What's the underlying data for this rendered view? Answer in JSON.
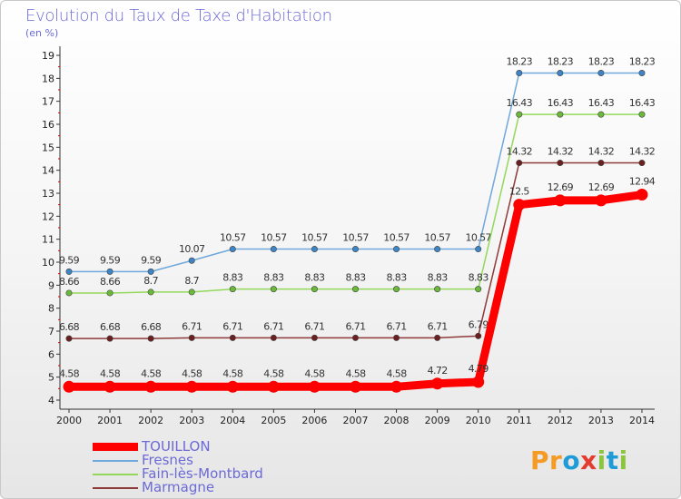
{
  "title": "Evolution du Taux de Taxe d'Habitation",
  "unit": "(en %)",
  "logo": {
    "text": "Proxiti",
    "letters": [
      {
        "ch": "P",
        "color": "#f59a23"
      },
      {
        "ch": "r",
        "color": "#f59a23"
      },
      {
        "ch": "o",
        "color": "#1f9bd7"
      },
      {
        "ch": "x",
        "color": "#e43c2f"
      },
      {
        "ch": "i",
        "color": "#8cc63f"
      },
      {
        "ch": "t",
        "color": "#1f9bd7"
      },
      {
        "ch": "i",
        "color": "#8cc63f"
      }
    ]
  },
  "chart_data": {
    "type": "line",
    "title": "Evolution du Taux de Taxe d'Habitation",
    "ylabel": "(en %)",
    "xlabel": "",
    "ylim": [
      4,
      19
    ],
    "yticks": [
      "4",
      "5",
      "6",
      "7",
      "8",
      "9",
      "10",
      "11",
      "12",
      "13",
      "14",
      "15",
      "16",
      "17",
      "18",
      "19"
    ],
    "grid": false,
    "legend": "bottom-left",
    "categories": [
      "2000",
      "2001",
      "2002",
      "2003",
      "2004",
      "2005",
      "2006",
      "2007",
      "2008",
      "2009",
      "2010",
      "2011",
      "2012",
      "2013",
      "2014"
    ],
    "series": [
      {
        "name": "Fresnes",
        "color": "#6fa8dc",
        "dot": "#3d85c6",
        "values": [
          9.59,
          9.59,
          9.59,
          10.07,
          10.57,
          10.57,
          10.57,
          10.57,
          10.57,
          10.57,
          10.57,
          18.23,
          18.23,
          18.23,
          18.23
        ],
        "labels": [
          "9.59",
          "9.59",
          "9.59",
          "10.07",
          "10.57",
          "10.57",
          "10.57",
          "10.57",
          "10.57",
          "10.57",
          "10.57",
          "18.23",
          "18.23",
          "18.23",
          "18.23"
        ]
      },
      {
        "name": "Fain-lès-Montbard",
        "color": "#93d85a",
        "dot": "#6ab93a",
        "values": [
          8.66,
          8.66,
          8.7,
          8.7,
          8.83,
          8.83,
          8.83,
          8.83,
          8.83,
          8.83,
          8.83,
          16.43,
          16.43,
          16.43,
          16.43
        ],
        "labels": [
          "8.66",
          "8.66",
          "8.7",
          "8.7",
          "8.83",
          "8.83",
          "8.83",
          "8.83",
          "8.83",
          "8.83",
          "8.83",
          "16.43",
          "16.43",
          "16.43",
          "16.43"
        ]
      },
      {
        "name": "Marmagne",
        "color": "#8e3a3a",
        "dot": "#6b1f1f",
        "values": [
          6.68,
          6.68,
          6.68,
          6.71,
          6.71,
          6.71,
          6.71,
          6.71,
          6.71,
          6.71,
          6.79,
          14.32,
          14.32,
          14.32,
          14.32
        ],
        "labels": [
          "6.68",
          "6.68",
          "6.68",
          "6.71",
          "6.71",
          "6.71",
          "6.71",
          "6.71",
          "6.71",
          "6.71",
          "6.79",
          "14.32",
          "14.32",
          "14.32",
          "14.32"
        ]
      },
      {
        "name": "TOUILLON",
        "color": "#ff0000",
        "dot": "#ff0000",
        "values": [
          4.58,
          4.58,
          4.58,
          4.58,
          4.58,
          4.58,
          4.58,
          4.58,
          4.58,
          4.72,
          4.79,
          12.5,
          12.69,
          12.69,
          12.94
        ],
        "labels": [
          "4.58",
          "4.58",
          "4.58",
          "4.58",
          "4.58",
          "4.58",
          "4.58",
          "4.58",
          "4.58",
          "4.72",
          "4.79",
          "12.5",
          "12.69",
          "12.69",
          "12.94"
        ]
      }
    ],
    "legend_order": [
      "TOUILLON",
      "Fresnes",
      "Fain-lès-Montbard",
      "Marmagne"
    ]
  }
}
